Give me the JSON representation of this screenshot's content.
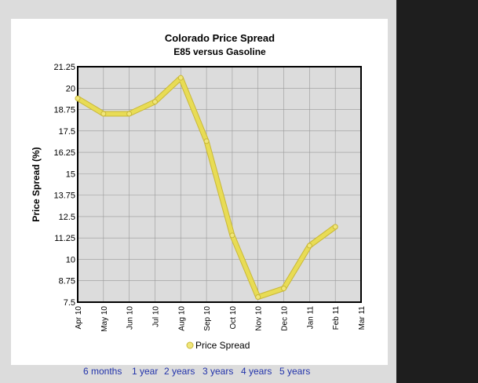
{
  "colors": {
    "plot_background": "#dcdcdc",
    "line": "#e8dc55",
    "line_outline": "#c9b838",
    "marker": "#f0e67a",
    "grid": "#999999",
    "link": "#2233aa"
  },
  "chart_data": {
    "type": "line",
    "title": "Colorado Price Spread",
    "subtitle": "E85 versus Gasoline",
    "ylabel": "Price Spread (%)",
    "xlabel": "",
    "ylim": [
      7.5,
      21.25
    ],
    "yticks": [
      "21.25",
      "20",
      "18.75",
      "17.5",
      "16.25",
      "15",
      "13.75",
      "12.5",
      "11.25",
      "10",
      "8.75",
      "7.5"
    ],
    "categories": [
      "Apr 10",
      "May 10",
      "Jun 10",
      "Jul 10",
      "Aug 10",
      "Sep 10",
      "Oct 10",
      "Nov 10",
      "Dec 10",
      "Jan 11",
      "Feb 11",
      "Mar 11"
    ],
    "series": [
      {
        "name": "Price Spread",
        "values": [
          19.4,
          18.5,
          18.5,
          19.2,
          20.6,
          16.9,
          11.4,
          7.8,
          8.3,
          10.8,
          11.9,
          null
        ]
      }
    ],
    "grid": true,
    "legend": "bottom-center"
  },
  "range_links": [
    "6 months",
    "1 year",
    "2 years",
    "3 years",
    "4 years",
    "5 years"
  ]
}
